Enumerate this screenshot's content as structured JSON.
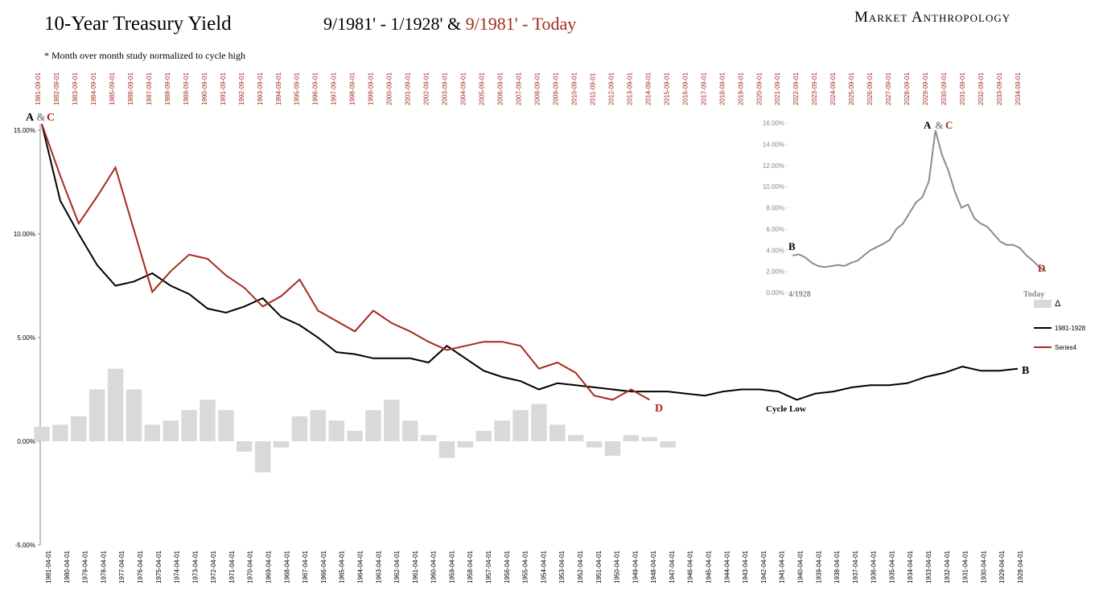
{
  "brand": "Market Anthropology",
  "chart_data": [
    {
      "type": "line",
      "title": "10-Year Treasury Yield",
      "subtitle": "9/1981' - 1/1928' & ",
      "subtitle_highlight": "9/1981' - Today",
      "note": "* Month over month study normalized to cycle high",
      "categories": [
        "1981-09-01",
        "1982-09-01",
        "1983-09-01",
        "1984-09-01",
        "1985-09-01",
        "1986-09-01",
        "1987-09-01",
        "1988-09-01",
        "1989-09-01",
        "1990-09-01",
        "1991-09-01",
        "1992-09-01",
        "1993-09-01",
        "1994-09-01",
        "1995-09-01",
        "1996-09-01",
        "1997-09-01",
        "1998-09-01",
        "1999-09-01",
        "2000-09-01",
        "2001-09-01",
        "2002-09-01",
        "2003-09-01",
        "2004-09-01",
        "2005-09-01",
        "2006-09-01",
        "2007-09-01",
        "2008-09-01",
        "2009-09-01",
        "2010-09-01",
        "2011-09-01",
        "2012-09-01",
        "2013-09-01",
        "2014-09-01",
        "2015-09-01",
        "2016-09-01",
        "2017-09-01",
        "2018-09-01",
        "2019-09-01",
        "2020-09-01",
        "2021-09-01",
        "2022-09-01",
        "2023-09-01",
        "2024-09-01",
        "2025-09-01",
        "2026-09-01",
        "2027-09-01",
        "2028-09-01",
        "2029-09-01",
        "2030-09-01",
        "2031-09-01",
        "2032-09-01",
        "2033-09-01",
        "2034-09-01"
      ],
      "x2_categories": [
        "1981-04-01",
        "1980-04-01",
        "1979-04-01",
        "1978-04-01",
        "1977-04-01",
        "1976-04-01",
        "1975-04-01",
        "1974-04-01",
        "1973-04-01",
        "1972-04-01",
        "1971-04-01",
        "1970-04-01",
        "1969-04-01",
        "1968-04-01",
        "1967-04-01",
        "1966-04-01",
        "1965-04-01",
        "1964-04-01",
        "1963-04-01",
        "1962-04-01",
        "1961-04-01",
        "1960-04-01",
        "1959-04-01",
        "1958-04-01",
        "1957-04-01",
        "1956-04-01",
        "1955-04-01",
        "1954-04-01",
        "1953-04-01",
        "1952-04-01",
        "1951-04-01",
        "1950-04-01",
        "1949-04-01",
        "1948-04-01",
        "1947-04-01",
        "1946-04-01",
        "1945-04-01",
        "1944-04-01",
        "1943-04-01",
        "1942-04-01",
        "1941-04-01",
        "1940-04-01",
        "1939-04-01",
        "1938-04-01",
        "1937-04-01",
        "1936-04-01",
        "1935-04-01",
        "1934-04-01",
        "1933-04-01",
        "1932-04-01",
        "1931-04-01",
        "1930-04-01",
        "1929-04-01",
        "1928-04-01"
      ],
      "series": [
        {
          "name": "Δ",
          "kind": "bar",
          "color": "#d9d9d9",
          "values": [
            0.7,
            0.8,
            1.2,
            2.5,
            3.5,
            2.5,
            0.8,
            1.0,
            1.5,
            2.0,
            1.5,
            -0.5,
            -1.5,
            -0.3,
            1.2,
            1.5,
            1.0,
            0.5,
            1.5,
            2.0,
            1.0,
            0.3,
            -0.8,
            -0.3,
            0.5,
            1.0,
            1.5,
            1.8,
            0.8,
            0.3,
            -0.3,
            -0.7,
            0.3,
            0.2,
            -0.3,
            null,
            null,
            null,
            null,
            null,
            null,
            null,
            null,
            null,
            null,
            null,
            null,
            null,
            null,
            null,
            null,
            null,
            null,
            null
          ]
        },
        {
          "name": "1981-1928",
          "kind": "line",
          "color": "#000000",
          "values": [
            15.3,
            11.6,
            10.0,
            8.5,
            7.5,
            7.7,
            8.1,
            7.5,
            7.1,
            6.4,
            6.2,
            6.5,
            6.9,
            6.0,
            5.6,
            5.0,
            4.3,
            4.2,
            4.0,
            4.0,
            4.0,
            3.8,
            4.6,
            4.0,
            3.4,
            3.1,
            2.9,
            2.5,
            2.8,
            2.7,
            2.6,
            2.5,
            2.4,
            2.4,
            2.4,
            2.3,
            2.2,
            2.4,
            2.5,
            2.5,
            2.4,
            2.0,
            2.3,
            2.4,
            2.6,
            2.7,
            2.7,
            2.8,
            3.1,
            3.3,
            3.6,
            3.4,
            3.4,
            3.5
          ]
        },
        {
          "name": "Series4",
          "kind": "line",
          "color": "#a52a1e",
          "values": [
            15.3,
            12.8,
            10.5,
            11.8,
            13.2,
            10.2,
            7.2,
            8.2,
            9.0,
            8.8,
            8.0,
            7.4,
            6.5,
            7.0,
            7.8,
            6.3,
            5.8,
            5.3,
            6.3,
            5.7,
            5.3,
            4.8,
            4.4,
            4.6,
            4.8,
            4.8,
            4.6,
            3.5,
            3.8,
            3.3,
            2.2,
            2.0,
            2.5,
            2.0,
            null,
            null,
            null,
            null,
            null,
            null,
            null,
            null,
            null,
            null,
            null,
            null,
            null,
            null,
            null,
            null,
            null,
            null,
            null,
            null
          ]
        }
      ],
      "ylim": [
        -5,
        15.3
      ],
      "yticks": [
        {
          "value": -5,
          "label": "-5.00%"
        },
        {
          "value": 0,
          "label": "0.00%"
        },
        {
          "value": 5,
          "label": "5.00%"
        },
        {
          "value": 10,
          "label": "10.00%"
        },
        {
          "value": 15,
          "label": "15.00%"
        }
      ],
      "annotations": [
        "A",
        "&",
        "C",
        "B",
        "D",
        "Cycle Low"
      ]
    },
    {
      "type": "line",
      "color": "#8c8c8c",
      "values": [
        3.5,
        3.6,
        3.3,
        2.8,
        2.5,
        2.4,
        2.5,
        2.6,
        2.5,
        2.8,
        3.0,
        3.5,
        4.0,
        4.3,
        4.6,
        5.0,
        6.0,
        6.5,
        7.5,
        8.5,
        9.0,
        10.5,
        15.3,
        13.0,
        11.5,
        9.5,
        8.0,
        8.3,
        7.0,
        6.5,
        6.2,
        5.5,
        4.8,
        4.5,
        4.5,
        4.2,
        3.5,
        3.0,
        2.4,
        2.0
      ],
      "ylim": [
        0,
        16
      ],
      "yticks": [
        {
          "value": 0,
          "label": "0.00%"
        },
        {
          "value": 2,
          "label": "2.00%"
        },
        {
          "value": 4,
          "label": "4.00%"
        },
        {
          "value": 6,
          "label": "6.00%"
        },
        {
          "value": 8,
          "label": "8.00%"
        },
        {
          "value": 10,
          "label": "10.00%"
        },
        {
          "value": 12,
          "label": "12.00%"
        },
        {
          "value": 14,
          "label": "14.00%"
        },
        {
          "value": 16,
          "label": "16.00%"
        }
      ],
      "annotations": [
        "A",
        "&",
        "C",
        "B",
        "D",
        "4/1928",
        "Today"
      ]
    }
  ]
}
